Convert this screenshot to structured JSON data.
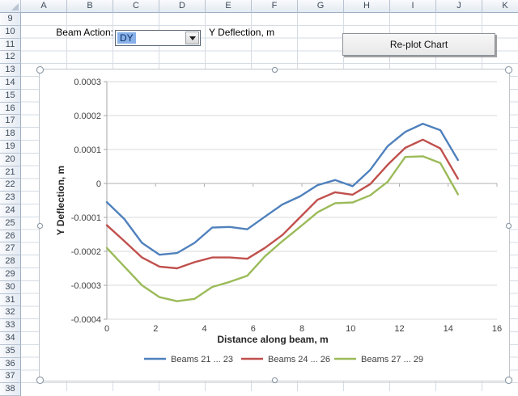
{
  "spreadsheet": {
    "columns": [
      "A",
      "B",
      "C",
      "D",
      "E",
      "F",
      "G",
      "H",
      "I",
      "J",
      "K"
    ],
    "rows": [
      "9",
      "10",
      "11",
      "12",
      "13",
      "14",
      "15",
      "16",
      "17",
      "18",
      "19",
      "20",
      "21",
      "22",
      "23",
      "24",
      "25",
      "26",
      "27",
      "28",
      "29",
      "30",
      "31",
      "32",
      "33",
      "34",
      "35",
      "36",
      "37",
      "38"
    ]
  },
  "controls": {
    "beam_action_label": "Beam Action:",
    "beam_action_value": "DY",
    "deflection_label": "Y Deflection, m",
    "replot_button_label": "Re-plot Chart"
  },
  "chart_data": {
    "type": "line",
    "title": "",
    "xlabel": "Distance along beam, m",
    "ylabel": "Y Deflection, m",
    "xlim": [
      0,
      16
    ],
    "ylim": [
      -0.0004,
      0.0003
    ],
    "xticks": [
      0,
      2,
      4,
      6,
      8,
      10,
      12,
      14,
      16
    ],
    "ytick_labels": [
      "0.0003",
      "0.0002",
      "0.0001",
      "0",
      "-0.0001",
      "-0.0002",
      "-0.0003",
      "-0.0004"
    ],
    "grid": true,
    "legend_position": "bottom",
    "x": [
      0,
      0.72,
      1.44,
      2.16,
      2.88,
      3.6,
      4.32,
      5.04,
      5.76,
      6.48,
      7.2,
      7.92,
      8.64,
      9.36,
      10.08,
      10.8,
      11.52,
      12.24,
      12.96,
      13.68,
      14.4
    ],
    "series": [
      {
        "name": "Beams 21 ... 23",
        "color": "#4F81BD",
        "values": [
          -5.5e-05,
          -0.000105,
          -0.000175,
          -0.00021,
          -0.000205,
          -0.000175,
          -0.00013,
          -0.000128,
          -0.000135,
          -9.8e-05,
          -6.2e-05,
          -3.8e-05,
          -5e-06,
          1e-05,
          -8e-06,
          4e-05,
          0.00011,
          0.000152,
          0.000176,
          0.000157,
          6.9e-05
        ]
      },
      {
        "name": "Beams 24 ... 26",
        "color": "#C0504D",
        "values": [
          -0.000123,
          -0.00017,
          -0.000218,
          -0.000245,
          -0.00025,
          -0.000232,
          -0.000218,
          -0.000218,
          -0.000222,
          -0.00019,
          -0.000152,
          -0.0001,
          -4.8e-05,
          -2.6e-05,
          -3.3e-05,
          -2e-06,
          5.5e-05,
          0.000105,
          0.000129,
          0.000103,
          1.4e-05
        ]
      },
      {
        "name": "Beams 27 ... 29",
        "color": "#9BBB59",
        "values": [
          -0.00019,
          -0.000245,
          -0.0003,
          -0.000335,
          -0.000347,
          -0.00034,
          -0.000305,
          -0.00029,
          -0.000272,
          -0.000215,
          -0.00017,
          -0.000128,
          -8.5e-05,
          -5.8e-05,
          -5.6e-05,
          -3.5e-05,
          5e-06,
          7.8e-05,
          8e-05,
          6e-05,
          -3.2e-05
        ]
      }
    ]
  }
}
